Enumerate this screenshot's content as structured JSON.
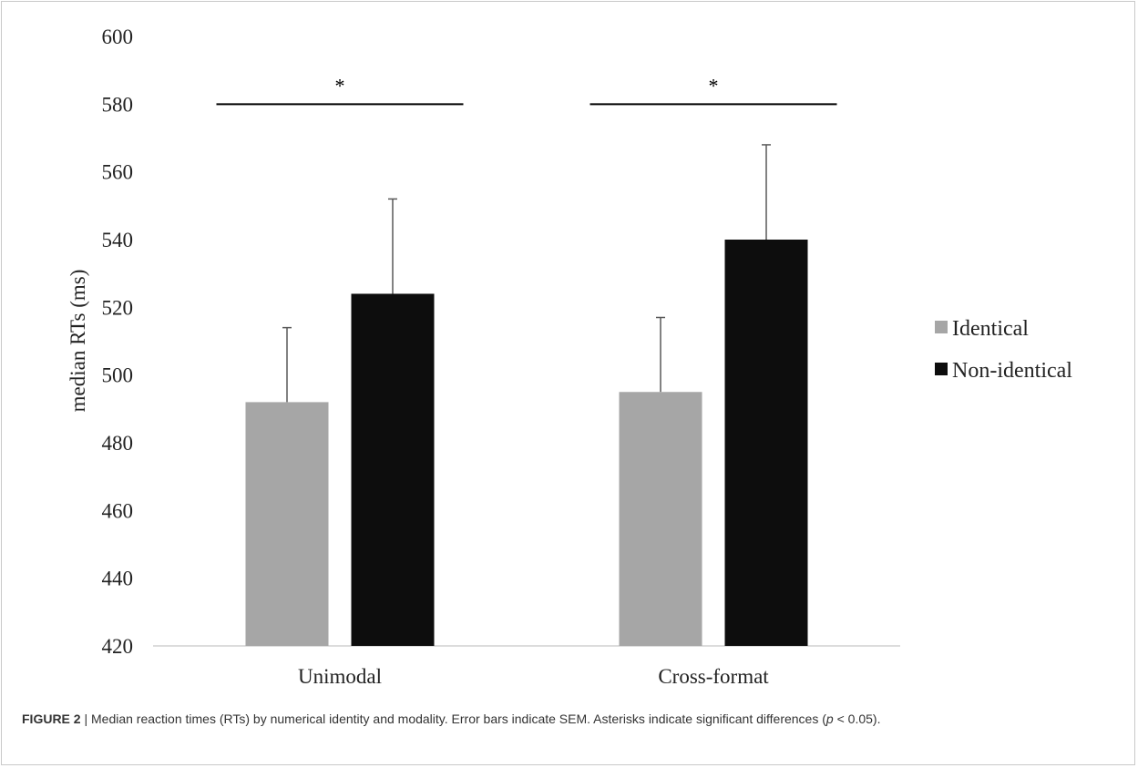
{
  "chart_data": {
    "type": "bar",
    "categories": [
      "Unimodal",
      "Cross-format"
    ],
    "series": [
      {
        "name": "Identical",
        "values": [
          492,
          495
        ],
        "error": [
          22,
          22
        ],
        "color": "#a6a6a6"
      },
      {
        "name": "Non-identical",
        "values": [
          524,
          540
        ],
        "error": [
          28,
          28
        ],
        "color": "#0d0d0d"
      }
    ],
    "ylabel": "median RTs (ms)",
    "ylim": [
      420,
      600
    ],
    "yticks": [
      420,
      440,
      460,
      480,
      500,
      520,
      540,
      560,
      580,
      600
    ],
    "grid": false,
    "legend": "right",
    "significance": [
      {
        "category": "Unimodal",
        "y": 580,
        "label": "*"
      },
      {
        "category": "Cross-format",
        "y": 580,
        "label": "*"
      }
    ]
  },
  "caption": {
    "label": "FIGURE 2",
    "separator": "|",
    "text_before_p": "Median reaction times (RTs) by numerical identity and modality. Error bars indicate SEM. Asterisks indicate significant differences (",
    "p_symbol": "p",
    "text_after_p": " < 0.05)."
  }
}
